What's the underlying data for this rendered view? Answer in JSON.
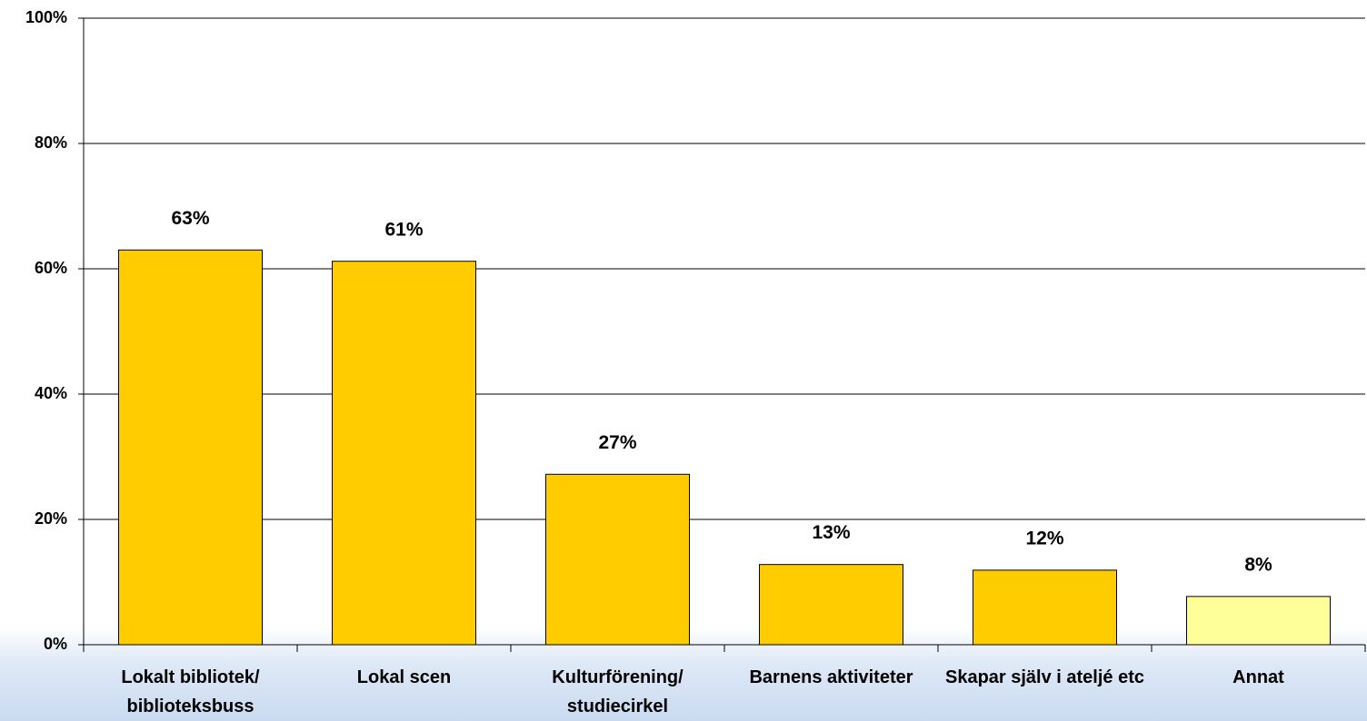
{
  "chart_data": {
    "type": "bar",
    "categories": [
      "Lokalt bibliotek/ biblioteksbuss",
      "Lokal scen",
      "Kulturförening/ studiecirkel",
      "Barnens aktiviteter",
      "Skapar själv i ateljé etc",
      "Annat"
    ],
    "values": [
      63,
      61.2,
      27.2,
      12.8,
      11.9,
      7.7
    ],
    "value_labels": [
      "63%",
      "61%",
      "27%",
      "13%",
      "12%",
      "8%"
    ],
    "colors": [
      "#ffcc00",
      "#ffcc00",
      "#ffcc00",
      "#ffcc00",
      "#ffcc00",
      "#ffff99"
    ],
    "ylim": [
      0,
      100
    ],
    "yticks": [
      {
        "value": 0,
        "label": "0%"
      },
      {
        "value": 20,
        "label": "20%"
      },
      {
        "value": 40,
        "label": "40%"
      },
      {
        "value": 60,
        "label": "60%"
      },
      {
        "value": 80,
        "label": "80%"
      },
      {
        "value": 100,
        "label": "100%"
      }
    ],
    "grid": true
  }
}
